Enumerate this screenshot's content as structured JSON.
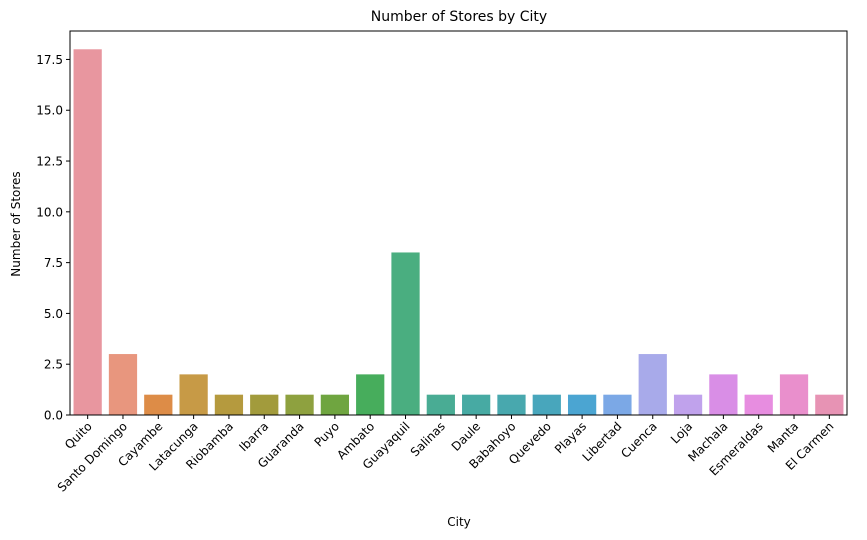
{
  "chart_data": {
    "type": "bar",
    "title": "Number of Stores by City",
    "xlabel": "City",
    "ylabel": "Number of Stores",
    "ylim": [
      0,
      18.9
    ],
    "yticks": [
      "0.0",
      "2.5",
      "5.0",
      "7.5",
      "10.0",
      "12.5",
      "15.0",
      "17.5"
    ],
    "ytick_values": [
      0,
      2.5,
      5,
      7.5,
      10,
      12.5,
      15,
      17.5
    ],
    "grid": false,
    "legend": "none",
    "categories": [
      "Quito",
      "Santo Domingo",
      "Cayambe",
      "Latacunga",
      "Riobamba",
      "Ibarra",
      "Guaranda",
      "Puyo",
      "Ambato",
      "Guayaquil",
      "Salinas",
      "Daule",
      "Babahoyo",
      "Quevedo",
      "Playas",
      "Libertad",
      "Cuenca",
      "Loja",
      "Machala",
      "Esmeraldas",
      "Manta",
      "El Carmen"
    ],
    "values": [
      18,
      3,
      1,
      2,
      1,
      1,
      1,
      1,
      2,
      8,
      1,
      1,
      1,
      1,
      1,
      1,
      3,
      1,
      2,
      1,
      2,
      1
    ],
    "colors": [
      "#e8969f",
      "#e8967e",
      "#dd8c47",
      "#c79a46",
      "#b59a3e",
      "#a29b3c",
      "#8ea13f",
      "#6fa540",
      "#47ad5c",
      "#4aae80",
      "#49ac94",
      "#47aaa3",
      "#48a8ae",
      "#48a6bc",
      "#4ba5d2",
      "#7ba8e6",
      "#a8aaea",
      "#c0a2ec",
      "#d98ee6",
      "#e78de0",
      "#e98fcc",
      "#e793b4"
    ]
  }
}
